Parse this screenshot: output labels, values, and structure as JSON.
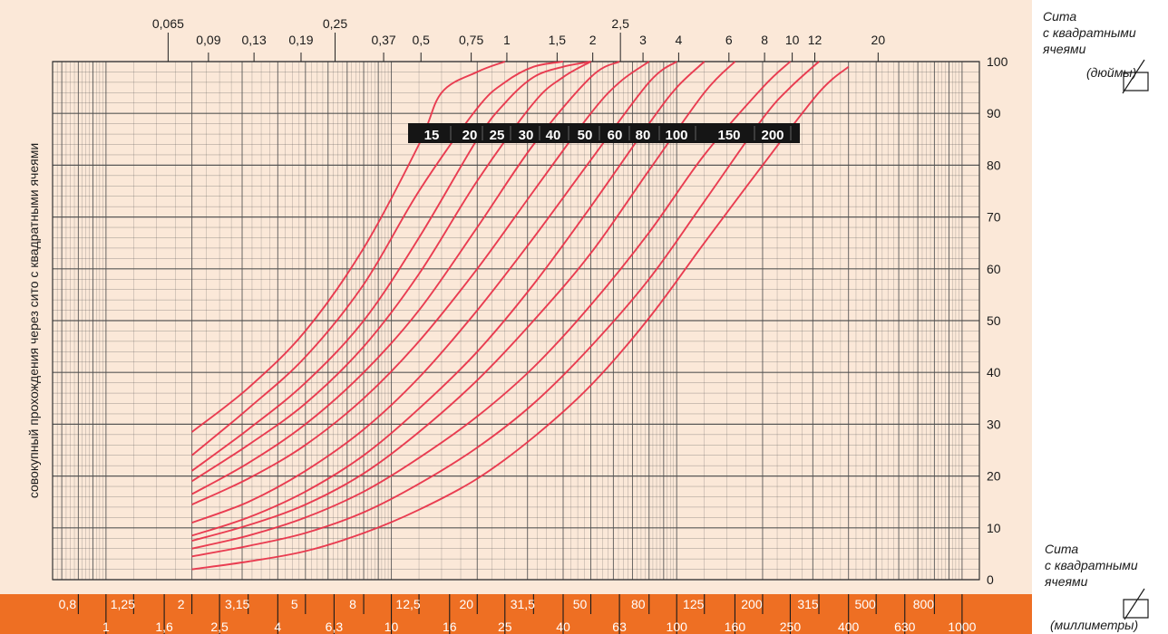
{
  "chart_data": {
    "type": "line",
    "title": "",
    "ylabel": "совокупный прохождения через сито с квадратными ячеями",
    "xscale": "log",
    "xlim": [
      0.65,
      1150
    ],
    "ylim": [
      0,
      100
    ],
    "grid": true,
    "right_axis_ticks": [
      "0",
      "10",
      "20",
      "30",
      "40",
      "50",
      "60",
      "70",
      "80",
      "90",
      "100"
    ],
    "top_ticks_row1": [
      "0,065",
      "0,25",
      "2,5"
    ],
    "top_ticks_row2": [
      "0,09",
      "0,13",
      "0,19",
      "0,37",
      "0,5",
      "0,75",
      "1",
      "1,5",
      "2",
      "3",
      "4",
      "6",
      "8",
      "10",
      "12",
      "20"
    ],
    "bottom_ticks_row1": [
      "0,8",
      "1,25",
      "2",
      "3,15",
      "5",
      "8",
      "12,5",
      "20",
      "31,5",
      "50",
      "80",
      "125",
      "200",
      "315",
      "500",
      "800"
    ],
    "bottom_ticks_row2": [
      "1",
      "1,6",
      "2,5",
      "4",
      "6,3",
      "10",
      "16",
      "25",
      "40",
      "63",
      "100",
      "160",
      "250",
      "400",
      "630",
      "1000"
    ],
    "bar_labels": [
      "15",
      "20",
      "25",
      "30",
      "40",
      "50",
      "60",
      "80",
      "100",
      "150",
      "200"
    ],
    "series": [
      {
        "max_size": "15",
        "x": [
          2,
          3.15,
          5,
          8,
          12.5,
          15,
          20,
          25
        ],
        "y": [
          28.5,
          37,
          48,
          64,
          84,
          94,
          98,
          100
        ]
      },
      {
        "max_size": "20",
        "x": [
          2,
          3.15,
          5,
          8,
          12.5,
          20,
          25,
          31.5,
          40
        ],
        "y": [
          24,
          33,
          43,
          57,
          75,
          91,
          96,
          99,
          100
        ]
      },
      {
        "max_size": "25",
        "x": [
          2,
          3.15,
          5,
          8,
          12.5,
          20,
          25,
          31.5,
          40,
          50
        ],
        "y": [
          21,
          29,
          38,
          50,
          66,
          85,
          92,
          97,
          99,
          100
        ]
      },
      {
        "max_size": "30",
        "x": [
          2,
          3.15,
          5,
          8,
          12.5,
          20,
          31.5,
          40,
          50
        ],
        "y": [
          19,
          26,
          34,
          45,
          59,
          77,
          92,
          97,
          100
        ]
      },
      {
        "max_size": "40",
        "x": [
          2,
          3.15,
          5,
          8,
          12.5,
          20,
          31.5,
          50,
          63
        ],
        "y": [
          16.5,
          22.5,
          30,
          40,
          52,
          68,
          84,
          97,
          100
        ]
      },
      {
        "max_size": "50",
        "x": [
          2,
          3.15,
          5,
          8,
          12.5,
          20,
          31.5,
          50,
          63,
          80
        ],
        "y": [
          14.5,
          19.5,
          26,
          35,
          46,
          60,
          75,
          90,
          96,
          100
        ]
      },
      {
        "max_size": "60",
        "x": [
          2,
          3.15,
          5,
          8,
          12.5,
          20,
          31.5,
          50,
          80,
          100
        ],
        "y": [
          11,
          15,
          21,
          29,
          39,
          52,
          66,
          81,
          96,
          100
        ]
      },
      {
        "max_size": "80",
        "x": [
          2,
          3.15,
          5,
          8,
          12.5,
          20,
          31.5,
          50,
          80,
          100,
          125
        ],
        "y": [
          8.5,
          12,
          17,
          24,
          33,
          44,
          57,
          72,
          88,
          95,
          100
        ]
      },
      {
        "max_size": "100",
        "x": [
          2,
          3.15,
          5,
          8,
          12.5,
          20,
          31.5,
          50,
          80,
          125,
          160
        ],
        "y": [
          7.5,
          10.5,
          14.5,
          20.5,
          28.5,
          38.5,
          50,
          63,
          79,
          94,
          100
        ]
      },
      {
        "max_size": "150",
        "x": [
          2,
          3.15,
          5,
          8,
          12.5,
          20,
          31.5,
          50,
          80,
          125,
          200,
          250
        ],
        "y": [
          6,
          8.5,
          12,
          17,
          23.5,
          31.5,
          41,
          53,
          67,
          82,
          95,
          100
        ]
      },
      {
        "max_size": "200",
        "x": [
          2,
          3.15,
          5,
          8,
          12.5,
          20,
          31.5,
          50,
          80,
          125,
          200,
          250,
          315
        ],
        "y": [
          4.5,
          6.5,
          9,
          13,
          18.5,
          25.5,
          34,
          45,
          58,
          73,
          89,
          95,
          100
        ]
      },
      {
        "max_size": "",
        "x": [
          2,
          3.15,
          5,
          8,
          12.5,
          20,
          31.5,
          50,
          80,
          125,
          200,
          315,
          400
        ],
        "y": [
          2,
          3.5,
          5.5,
          9,
          13.5,
          19.5,
          27.5,
          37.5,
          50.5,
          65,
          80,
          94,
          99
        ]
      }
    ]
  },
  "legend": {
    "top_line1": "Сита",
    "top_line2": "с квадратными",
    "top_line3": "ячеями",
    "top_unit": "(дюймы)",
    "bottom_line1": "Сита",
    "bottom_line2": "с квадратными",
    "bottom_line3": "ячеями",
    "bottom_unit": "(миллиметры)"
  },
  "colors": {
    "panel": "#fbe8d8",
    "orange_band": "#ee6f23",
    "curve": "#e8344a",
    "grid": "#505050",
    "label_bar": "#151515"
  }
}
